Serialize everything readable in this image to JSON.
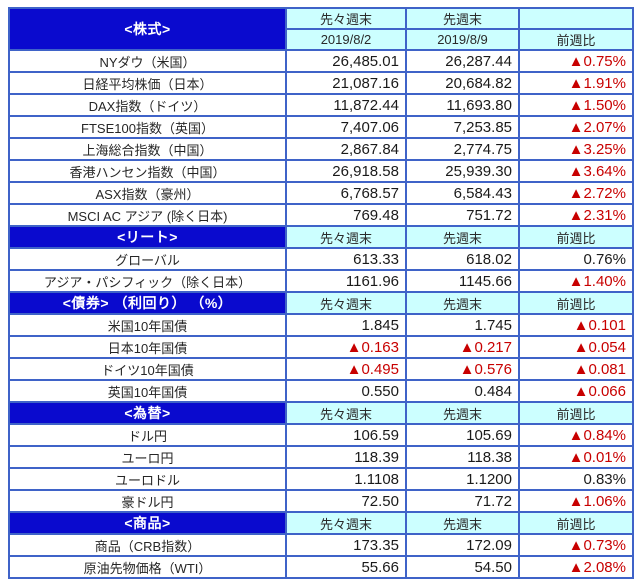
{
  "colors": {
    "section_header_bg": "#0a0ace",
    "column_header_bg": "#ccffff",
    "grid_border": "#3f63c8",
    "negative_red": "#c80000"
  },
  "columns": {
    "period_prev": "先々週末",
    "period_last": "先週末",
    "change": "前週比",
    "date_prev": "2019/8/2",
    "date_last": "2019/8/9"
  },
  "negative_marker": "▲",
  "sections": [
    {
      "id": "stocks",
      "title": "<株式>",
      "has_dates": true,
      "rows": [
        {
          "label": "NYダウ（米国）",
          "prev": "26,485.01",
          "last": "26,287.44",
          "chg": "▲0.75%"
        },
        {
          "label": "日経平均株価（日本）",
          "prev": "21,087.16",
          "last": "20,684.82",
          "chg": "▲1.91%"
        },
        {
          "label": "DAX指数（ドイツ）",
          "prev": "11,872.44",
          "last": "11,693.80",
          "chg": "▲1.50%"
        },
        {
          "label": "FTSE100指数（英国）",
          "prev": "7,407.06",
          "last": "7,253.85",
          "chg": "▲2.07%"
        },
        {
          "label": "上海総合指数（中国）",
          "prev": "2,867.84",
          "last": "2,774.75",
          "chg": "▲3.25%"
        },
        {
          "label": "香港ハンセン指数（中国）",
          "prev": "26,918.58",
          "last": "25,939.30",
          "chg": "▲3.64%"
        },
        {
          "label": "ASX指数（豪州）",
          "prev": "6,768.57",
          "last": "6,584.43",
          "chg": "▲2.72%"
        },
        {
          "label": "MSCI AC アジア (除く日本)",
          "prev": "769.48",
          "last": "751.72",
          "chg": "▲2.31%"
        }
      ]
    },
    {
      "id": "reit",
      "title": "<リート>",
      "has_dates": false,
      "rows": [
        {
          "label": "グローバル",
          "prev": "613.33",
          "last": "618.02",
          "chg": "0.76%"
        },
        {
          "label": "アジア・パシフィック（除く日本）",
          "prev": "1161.96",
          "last": "1145.66",
          "chg": "▲1.40%"
        }
      ]
    },
    {
      "id": "bonds",
      "title": "<債券> （利回り） （%）",
      "has_dates": false,
      "rows": [
        {
          "label": "米国10年国債",
          "prev": "1.845",
          "last": "1.745",
          "chg": "▲0.101"
        },
        {
          "label": "日本10年国債",
          "prev": "▲0.163",
          "last": "▲0.217",
          "chg": "▲0.054"
        },
        {
          "label": "ドイツ10年国債",
          "prev": "▲0.495",
          "last": "▲0.576",
          "chg": "▲0.081"
        },
        {
          "label": "英国10年国債",
          "prev": "0.550",
          "last": "0.484",
          "chg": "▲0.066"
        }
      ]
    },
    {
      "id": "fx",
      "title": "<為替>",
      "has_dates": false,
      "rows": [
        {
          "label": "ドル円",
          "prev": "106.59",
          "last": "105.69",
          "chg": "▲0.84%"
        },
        {
          "label": "ユーロ円",
          "prev": "118.39",
          "last": "118.38",
          "chg": "▲0.01%"
        },
        {
          "label": "ユーロドル",
          "prev": "1.1108",
          "last": "1.1200",
          "chg": "0.83%"
        },
        {
          "label": "豪ドル円",
          "prev": "72.50",
          "last": "71.72",
          "chg": "▲1.06%"
        }
      ]
    },
    {
      "id": "commodities",
      "title": "<商品>",
      "has_dates": false,
      "rows": [
        {
          "label": "商品（CRB指数）",
          "prev": "173.35",
          "last": "172.09",
          "chg": "▲0.73%"
        },
        {
          "label": "原油先物価格（WTI）",
          "prev": "55.66",
          "last": "54.50",
          "chg": "▲2.08%"
        }
      ]
    }
  ]
}
